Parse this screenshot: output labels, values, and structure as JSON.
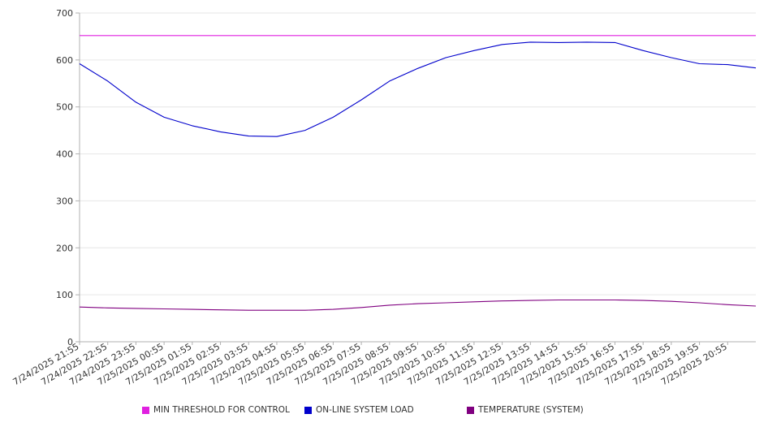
{
  "chart_data": {
    "type": "line",
    "ylim": [
      0,
      700
    ],
    "yticks": [
      0,
      100,
      200,
      300,
      400,
      500,
      600,
      700
    ],
    "grid": true,
    "legend_placement": "bottom",
    "x_tick_labels": [
      "7/24/2025 21:55",
      "7/24/2025 22:55",
      "7/24/2025 23:55",
      "7/25/2025 00:55",
      "7/25/2025 01:55",
      "7/25/2025 02:55",
      "7/25/2025 03:55",
      "7/25/2025 04:55",
      "7/25/2025 05:55",
      "7/25/2025 06:55",
      "7/25/2025 07:55",
      "7/25/2025 08:55",
      "7/25/2025 09:55",
      "7/25/2025 10:55",
      "7/25/2025 11:55",
      "7/25/2025 12:55",
      "7/25/2025 13:55",
      "7/25/2025 14:55",
      "7/25/2025 15:55",
      "7/25/2025 16:55",
      "7/25/2025 17:55",
      "7/25/2025 18:55",
      "7/25/2025 19:55",
      "7/25/2025 20:55"
    ],
    "x": [
      "7/24/2025 21:55",
      "7/24/2025 22:55",
      "7/24/2025 23:55",
      "7/25/2025 00:55",
      "7/25/2025 01:55",
      "7/25/2025 02:55",
      "7/25/2025 03:55",
      "7/25/2025 04:55",
      "7/25/2025 05:55",
      "7/25/2025 06:55",
      "7/25/2025 07:55",
      "7/25/2025 08:55",
      "7/25/2025 09:55",
      "7/25/2025 10:55",
      "7/25/2025 11:55",
      "7/25/2025 12:55",
      "7/25/2025 13:55",
      "7/25/2025 14:55",
      "7/25/2025 15:55",
      "7/25/2025 16:55",
      "7/25/2025 17:55",
      "7/25/2025 18:55",
      "7/25/2025 19:55",
      "7/25/2025 20:55",
      "7/25/2025 21:40"
    ],
    "series": [
      {
        "name": "MIN THRESHOLD FOR CONTROL",
        "color": "#e020e0",
        "values": [
          652,
          652,
          652,
          652,
          652,
          652,
          652,
          652,
          652,
          652,
          652,
          652,
          652,
          652,
          652,
          652,
          652,
          652,
          652,
          652,
          652,
          652,
          652,
          652,
          652
        ]
      },
      {
        "name": "ON-LINE SYSTEM LOAD",
        "color": "#0000cc",
        "values": [
          592,
          555,
          510,
          478,
          460,
          447,
          438,
          437,
          450,
          478,
          515,
          555,
          582,
          605,
          620,
          633,
          638,
          637,
          638,
          637,
          620,
          605,
          592,
          590,
          583
        ]
      },
      {
        "name": "TEMPERATURE (SYSTEM)",
        "color": "#800080",
        "values": [
          74,
          72,
          71,
          70,
          69,
          68,
          67,
          67,
          67,
          69,
          73,
          78,
          81,
          83,
          85,
          87,
          88,
          89,
          89,
          89,
          88,
          86,
          83,
          79,
          76
        ]
      }
    ]
  }
}
